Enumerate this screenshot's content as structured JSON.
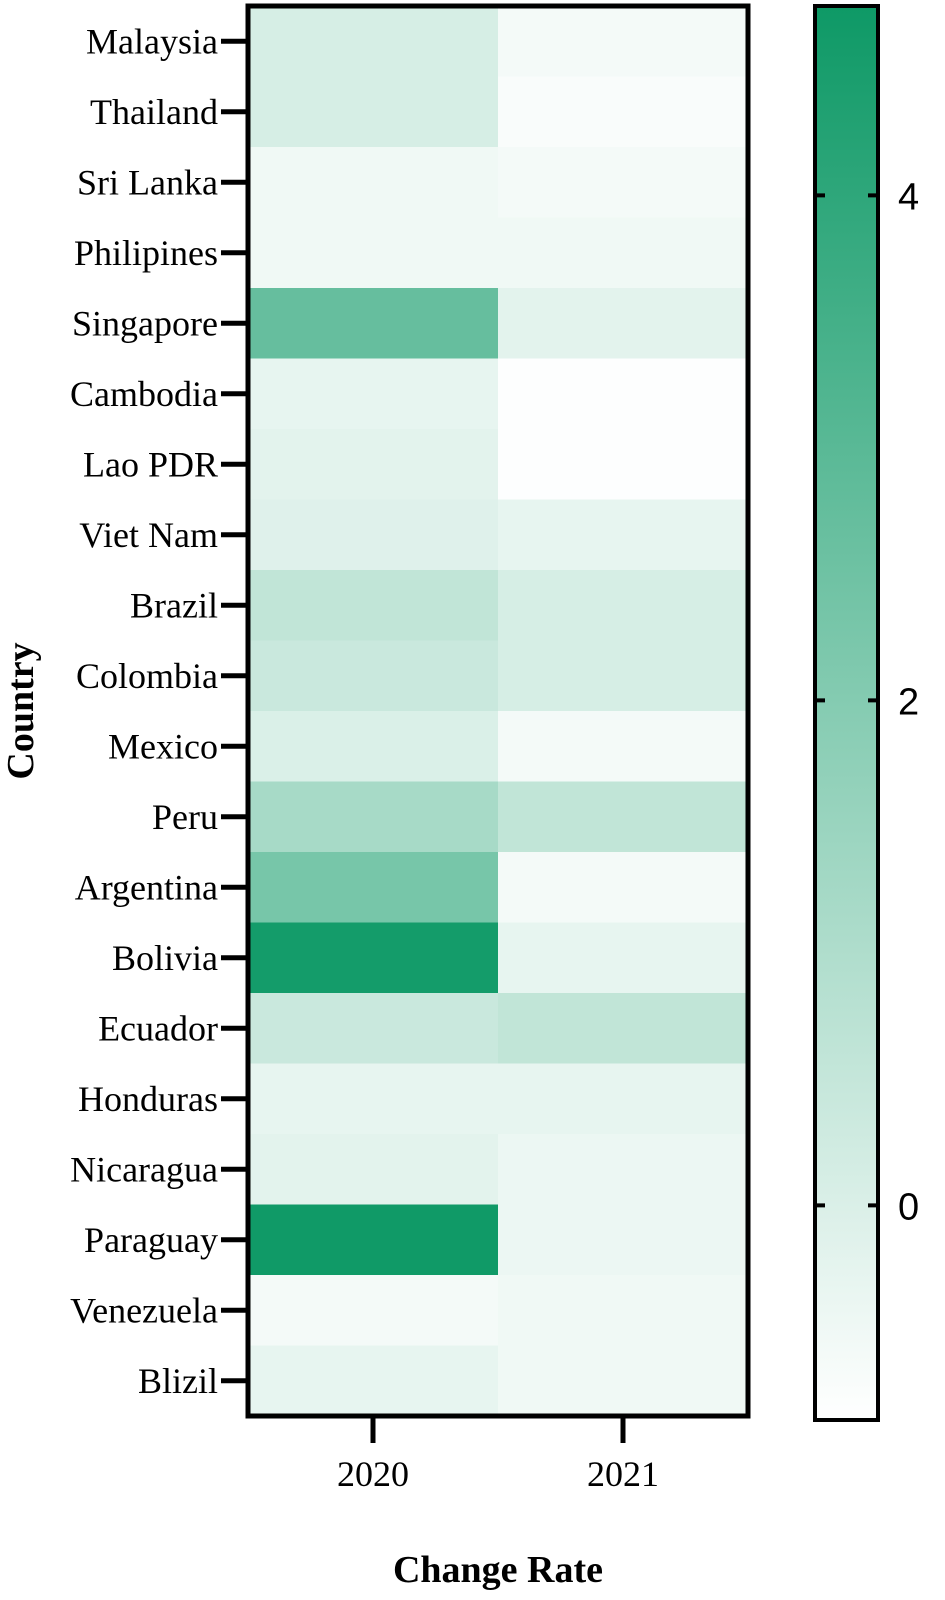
{
  "chart_data": {
    "type": "heatmap",
    "title": "",
    "xlabel": "Change Rate",
    "ylabel": "Country",
    "columns": [
      "2020",
      "2021"
    ],
    "rows": [
      "Malaysia",
      "Thailand",
      "Sri Lanka",
      "Philipines",
      "Singapore",
      "Cambodia",
      "Lao PDR",
      "Viet Nam",
      "Brazil",
      "Colombia",
      "Mexico",
      "Peru",
      "Argentina",
      "Bolivia",
      "Ecuador",
      "Honduras",
      "Nicaragua",
      "Paraguay",
      "Venezuela",
      "Blizil"
    ],
    "values": [
      [
        0.1,
        -0.6
      ],
      [
        0.1,
        -0.7
      ],
      [
        -0.5,
        -0.6
      ],
      [
        -0.5,
        -0.5
      ],
      [
        2.7,
        -0.2
      ],
      [
        -0.3,
        -0.8
      ],
      [
        -0.2,
        -0.8
      ],
      [
        -0.1,
        -0.3
      ],
      [
        0.6,
        0.1
      ],
      [
        0.4,
        0.1
      ],
      [
        0.0,
        -0.6
      ],
      [
        1.2,
        0.6
      ],
      [
        2.3,
        -0.6
      ],
      [
        4.6,
        -0.3
      ],
      [
        0.4,
        0.6
      ],
      [
        -0.3,
        -0.3
      ],
      [
        -0.2,
        -0.4
      ],
      [
        4.7,
        -0.4
      ],
      [
        -0.6,
        -0.5
      ],
      [
        -0.3,
        -0.5
      ]
    ],
    "colorbar": {
      "min": -0.85,
      "max": 4.75,
      "ticks": [
        0,
        2,
        4
      ],
      "tick_labels": [
        "0",
        "2",
        "4"
      ],
      "color_low": "#ffffff",
      "color_high": "#0e9966"
    },
    "grid": false,
    "legend": "colorbar-right"
  }
}
